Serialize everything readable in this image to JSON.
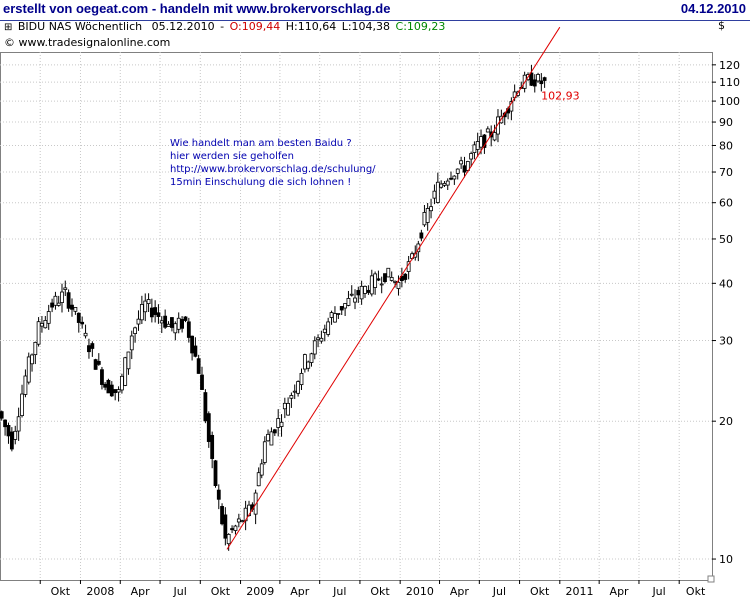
{
  "header": {
    "title": "erstellt von oegeat.com - handeln mit www.brokervorschlag.de",
    "date": "04.12.2010",
    "instrument": "BIDU NAS Wöchentlich",
    "bar_date": "05.12.2010",
    "open": "O:109,44",
    "high": "H:110,64",
    "low": "L:104,38",
    "close": "C:109,23",
    "source": "© www.tradesignalonline.com",
    "currency": "$"
  },
  "annotation": [
    "Wie handelt man am besten Baidu ?",
    "hier werden sie geholfen",
    "http://www.brokervorschlag.de/schulung/",
    "15min Einschulung die sich lohnen !"
  ],
  "colors": {
    "title": "#00008b",
    "open": "#d00000",
    "close": "#008800",
    "trendline": "#e00000",
    "candle": "#000000",
    "note": "#0000b0",
    "grid": "#c8c8c8"
  },
  "chart_data": {
    "type": "candlestick",
    "title": "BIDU NAS Wöchentlich",
    "y_scale": "log",
    "ylim": [
      9,
      128
    ],
    "yticks": [
      10,
      20,
      30,
      40,
      50,
      60,
      70,
      80,
      90,
      100,
      110,
      120
    ],
    "xticks": [
      "Okt",
      "2008",
      "Apr",
      "Jul",
      "Okt",
      "2009",
      "Apr",
      "Jul",
      "Okt",
      "2010",
      "Apr",
      "Jul",
      "Okt",
      "2011",
      "Apr",
      "Jul",
      "Okt"
    ],
    "xrange": [
      "2007-07-01",
      "2011-12-15"
    ],
    "grid": true,
    "series": [
      {
        "values": [
          [
            "2007-07-01",
            21
          ],
          [
            "2007-08-01",
            18
          ],
          [
            "2007-09-01",
            25
          ],
          [
            "2007-10-01",
            32
          ],
          [
            "2007-11-01",
            36
          ],
          [
            "2007-12-01",
            38
          ],
          [
            "2008-01-01",
            33
          ],
          [
            "2008-02-01",
            28
          ],
          [
            "2008-03-01",
            24
          ],
          [
            "2008-04-01",
            23
          ],
          [
            "2008-05-01",
            31
          ],
          [
            "2008-06-01",
            36
          ],
          [
            "2008-07-01",
            34
          ],
          [
            "2008-08-01",
            32
          ],
          [
            "2008-09-01",
            33
          ],
          [
            "2008-10-01",
            26
          ],
          [
            "2008-11-01",
            16
          ],
          [
            "2008-12-01",
            11
          ],
          [
            "2009-01-01",
            12
          ],
          [
            "2009-02-01",
            13
          ],
          [
            "2009-03-01",
            18
          ],
          [
            "2009-04-01",
            20
          ],
          [
            "2009-05-01",
            23
          ],
          [
            "2009-06-01",
            27
          ],
          [
            "2009-07-01",
            30
          ],
          [
            "2009-08-01",
            34
          ],
          [
            "2009-09-01",
            36
          ],
          [
            "2009-10-01",
            38
          ],
          [
            "2009-11-01",
            40
          ],
          [
            "2009-12-01",
            42
          ],
          [
            "2010-01-01",
            40
          ],
          [
            "2010-02-01",
            45
          ],
          [
            "2010-03-01",
            55
          ],
          [
            "2010-04-01",
            65
          ],
          [
            "2010-05-01",
            70
          ],
          [
            "2010-06-01",
            72
          ],
          [
            "2010-07-01",
            80
          ],
          [
            "2010-08-01",
            85
          ],
          [
            "2010-09-01",
            95
          ],
          [
            "2010-10-01",
            108
          ],
          [
            "2010-11-01",
            112
          ],
          [
            "2010-12-01",
            109.23
          ]
        ]
      }
    ],
    "trendline": {
      "from": [
        "2008-12-01",
        10.5
      ],
      "to": [
        "2011-01-01",
        145
      ]
    },
    "label": {
      "text": "102,93",
      "at": [
        "2010-11-01",
        102.93
      ]
    }
  }
}
